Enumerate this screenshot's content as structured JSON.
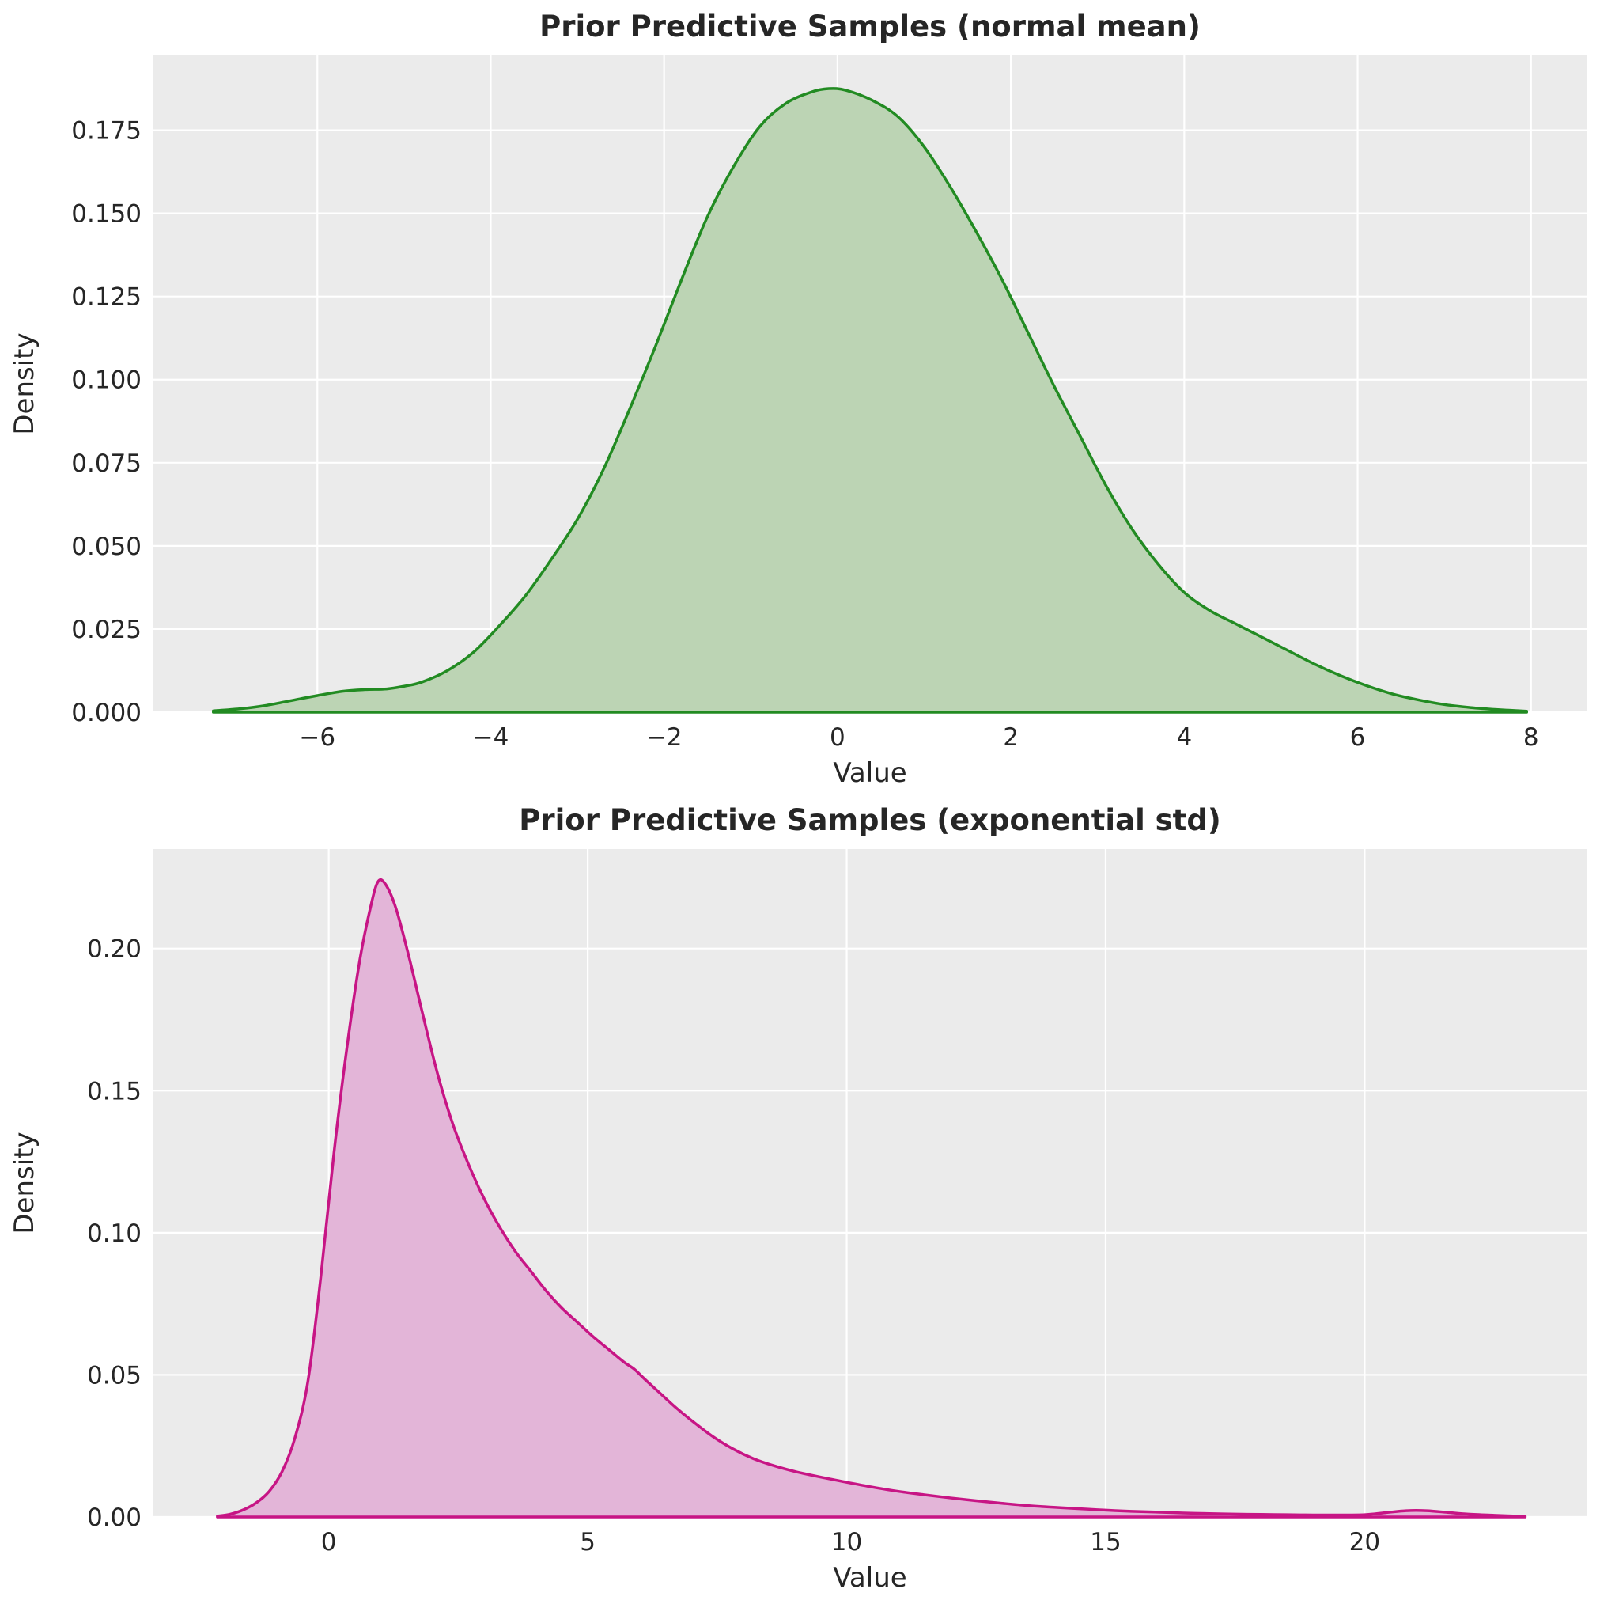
{
  "figure": {
    "background": "#ffffff",
    "axes_background": "#ebebeb",
    "grid_color": "#ffffff",
    "text_color": "#262626"
  },
  "chart_data": [
    {
      "type": "area",
      "title": "Prior Predictive Samples (normal mean)",
      "xlabel": "Value",
      "ylabel": "Density",
      "legend": "none",
      "grid": true,
      "line_color": "#228b22",
      "fill_color": "#bcd4b4",
      "xlim": [
        -7.9,
        8.65
      ],
      "ylim": [
        0,
        0.1975
      ],
      "xticks": [
        -6,
        -4,
        -2,
        0,
        2,
        4,
        6,
        8
      ],
      "xtick_labels": [
        "−6",
        "−4",
        "−2",
        "0",
        "2",
        "4",
        "6",
        "8"
      ],
      "yticks": [
        0.0,
        0.025,
        0.05,
        0.075,
        0.1,
        0.125,
        0.15,
        0.175
      ],
      "ytick_labels": [
        "0.000",
        "0.025",
        "0.050",
        "0.075",
        "0.100",
        "0.125",
        "0.150",
        "0.175"
      ],
      "x": [
        -7.2,
        -6.9,
        -6.6,
        -6.3,
        -6.0,
        -5.7,
        -5.45,
        -5.2,
        -5.0,
        -4.8,
        -4.5,
        -4.2,
        -3.9,
        -3.6,
        -3.3,
        -3.0,
        -2.7,
        -2.4,
        -2.1,
        -1.8,
        -1.5,
        -1.2,
        -0.9,
        -0.6,
        -0.3,
        -0.1,
        0.1,
        0.4,
        0.7,
        1.0,
        1.3,
        1.6,
        1.9,
        2.2,
        2.5,
        2.8,
        3.1,
        3.4,
        3.7,
        4.0,
        4.3,
        4.6,
        4.9,
        5.2,
        5.5,
        5.8,
        6.1,
        6.4,
        6.7,
        7.0,
        7.3,
        7.6,
        7.95
      ],
      "y": [
        0.0004,
        0.001,
        0.002,
        0.0035,
        0.005,
        0.0063,
        0.0068,
        0.007,
        0.0078,
        0.009,
        0.0125,
        0.018,
        0.026,
        0.035,
        0.046,
        0.058,
        0.073,
        0.091,
        0.11,
        0.13,
        0.149,
        0.164,
        0.176,
        0.183,
        0.1865,
        0.1875,
        0.187,
        0.184,
        0.179,
        0.17,
        0.158,
        0.1445,
        0.13,
        0.114,
        0.098,
        0.083,
        0.068,
        0.055,
        0.0445,
        0.036,
        0.0305,
        0.0265,
        0.0225,
        0.0185,
        0.0145,
        0.011,
        0.008,
        0.0055,
        0.0037,
        0.0023,
        0.0014,
        0.0008,
        0.0003
      ]
    },
    {
      "type": "area",
      "title": "Prior Predictive Samples (exponential std)",
      "xlabel": "Value",
      "ylabel": "Density",
      "legend": "none",
      "grid": true,
      "line_color": "#c71585",
      "fill_color": "#e3b5d8",
      "xlim": [
        -3.4,
        24.3
      ],
      "ylim": [
        0,
        0.235
      ],
      "xticks": [
        0,
        5,
        10,
        15,
        20
      ],
      "xtick_labels": [
        "0",
        "5",
        "10",
        "15",
        "20"
      ],
      "yticks": [
        0.0,
        0.05,
        0.1,
        0.15,
        0.2
      ],
      "ytick_labels": [
        "0.00",
        "0.05",
        "0.10",
        "0.15",
        "0.20"
      ],
      "x": [
        -2.15,
        -1.9,
        -1.65,
        -1.4,
        -1.15,
        -0.9,
        -0.65,
        -0.4,
        -0.15,
        0.1,
        0.35,
        0.6,
        0.8,
        0.95,
        1.1,
        1.3,
        1.55,
        1.8,
        2.1,
        2.4,
        2.7,
        3.0,
        3.3,
        3.6,
        3.9,
        4.2,
        4.5,
        4.8,
        5.1,
        5.4,
        5.7,
        5.9,
        6.1,
        6.4,
        6.7,
        7.0,
        7.4,
        7.8,
        8.2,
        8.6,
        9.0,
        9.5,
        10.0,
        10.5,
        11.0,
        11.5,
        12.0,
        12.5,
        13.0,
        13.5,
        14.0,
        14.5,
        15.0,
        15.5,
        16.0,
        16.5,
        17.0,
        17.5,
        18.0,
        18.5,
        19.0,
        19.5,
        20.0,
        20.4,
        20.8,
        21.2,
        21.6,
        22.0,
        22.5,
        23.1
      ],
      "y": [
        0.0003,
        0.001,
        0.0025,
        0.005,
        0.009,
        0.016,
        0.028,
        0.048,
        0.085,
        0.128,
        0.165,
        0.196,
        0.214,
        0.2235,
        0.2225,
        0.214,
        0.197,
        0.178,
        0.156,
        0.138,
        0.124,
        0.112,
        0.102,
        0.0935,
        0.0865,
        0.0795,
        0.0735,
        0.0685,
        0.0635,
        0.059,
        0.0545,
        0.052,
        0.0485,
        0.0435,
        0.0385,
        0.034,
        0.0285,
        0.024,
        0.0205,
        0.018,
        0.016,
        0.014,
        0.0122,
        0.0105,
        0.009,
        0.0078,
        0.0067,
        0.0057,
        0.0048,
        0.004,
        0.0034,
        0.0029,
        0.0024,
        0.002,
        0.0017,
        0.0014,
        0.0012,
        0.001,
        0.0009,
        0.0008,
        0.0007,
        0.0007,
        0.0008,
        0.0015,
        0.0022,
        0.0022,
        0.0016,
        0.001,
        0.0006,
        0.0002
      ]
    }
  ]
}
